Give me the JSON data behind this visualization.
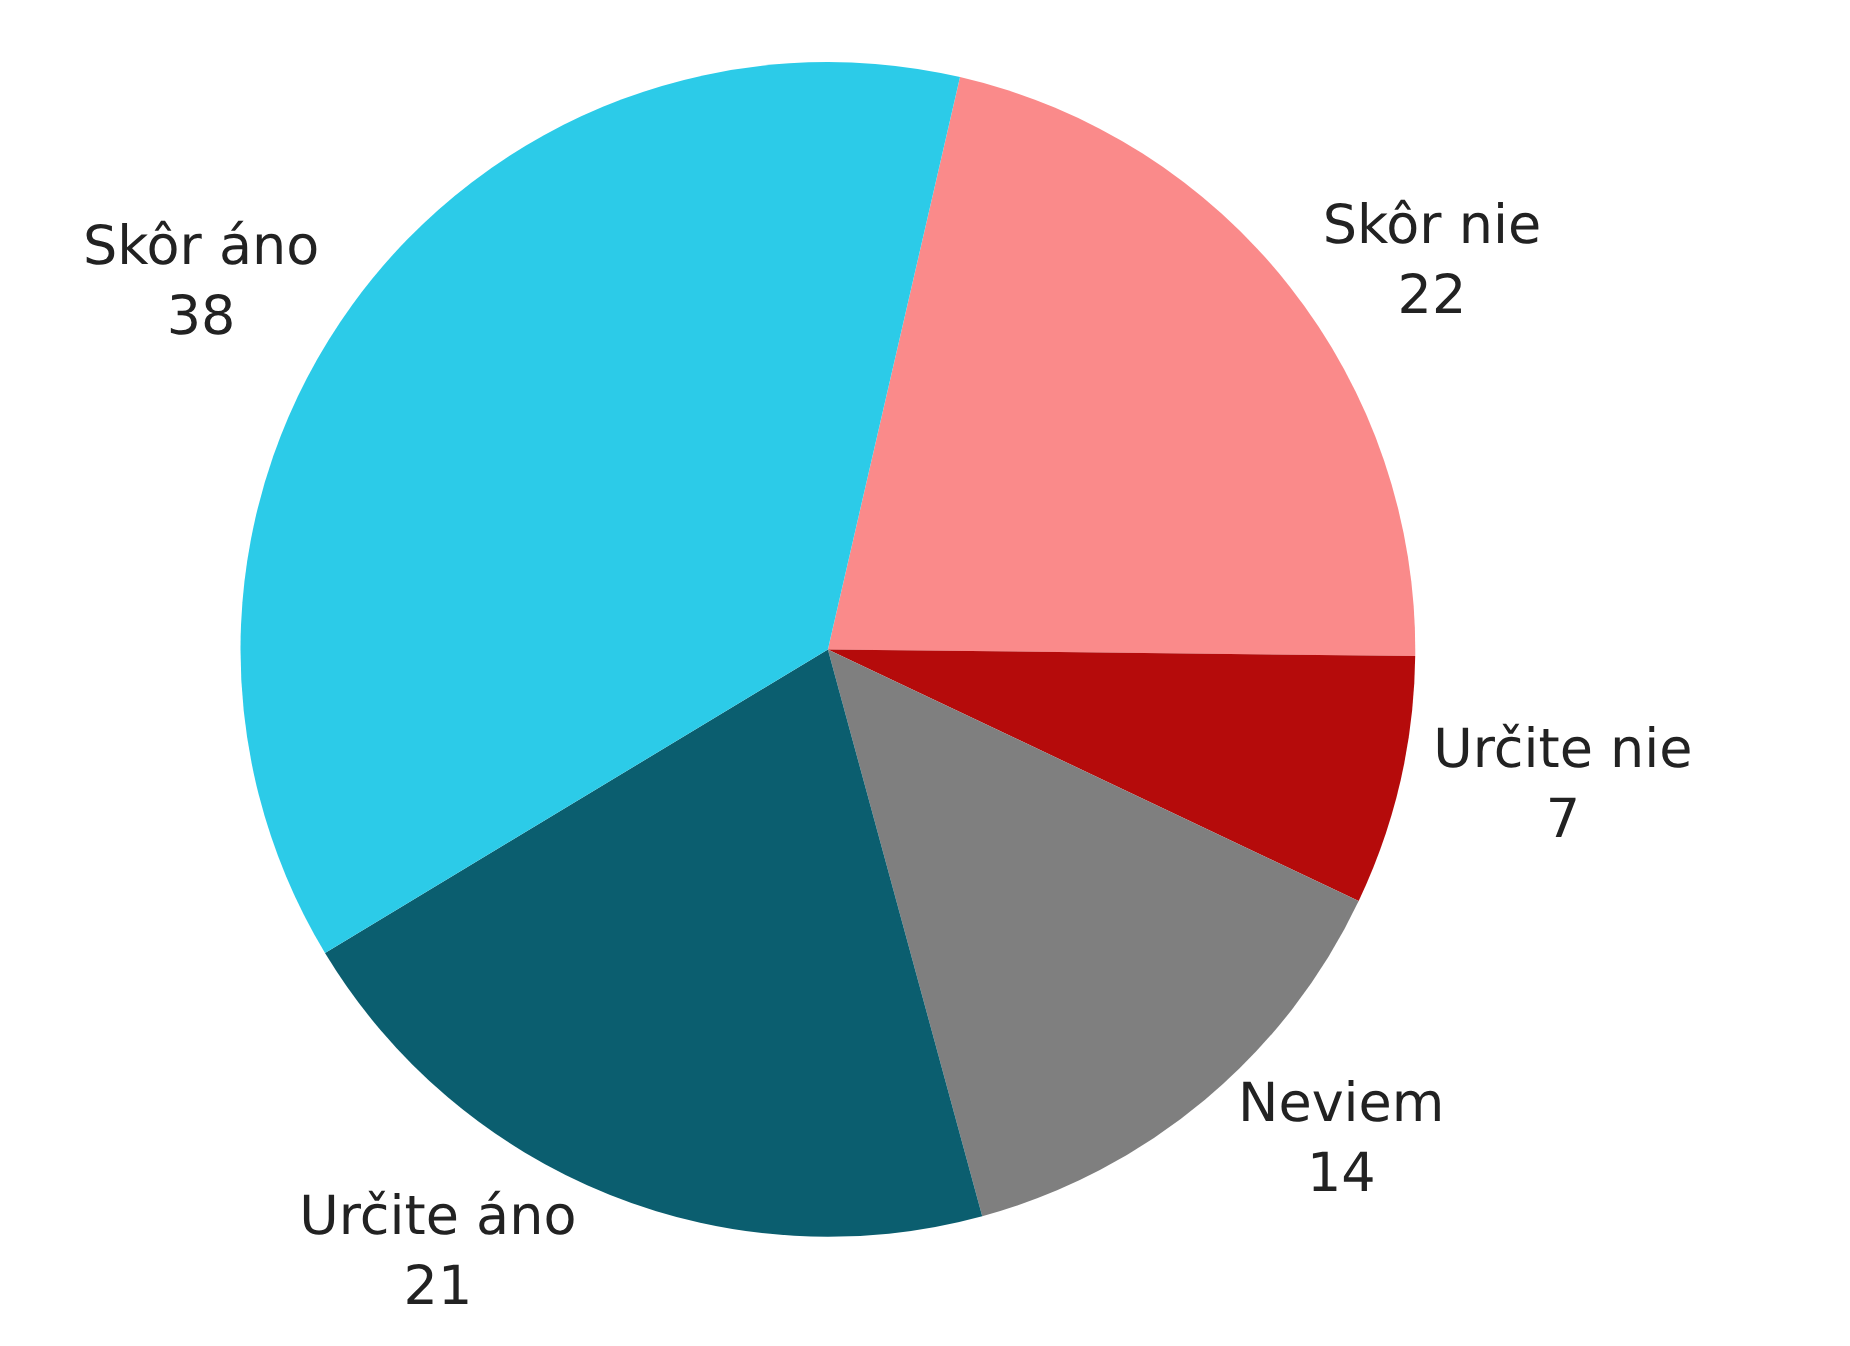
{
  "chart_data": {
    "type": "pie",
    "categories": [
      "Skôr nie",
      "Určite nie",
      "Neviem",
      "Určite áno",
      "Skôr áno"
    ],
    "values": [
      22,
      7,
      14,
      21,
      38
    ],
    "colors": [
      "#fa8a8a",
      "#b50b0b",
      "#7f7f7f",
      "#0b5e6f",
      "#2ccbe8"
    ],
    "data_labels": true,
    "legend": false
  }
}
